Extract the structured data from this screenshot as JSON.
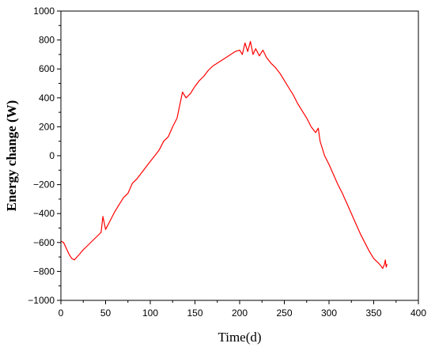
{
  "chart_data": {
    "type": "line",
    "title": "",
    "xlabel": "Time(d)",
    "ylabel": "Energy change (W)",
    "xlim": [
      0,
      400
    ],
    "ylim": [
      -1000,
      1000
    ],
    "x_ticks": [
      0,
      50,
      100,
      150,
      200,
      250,
      300,
      350,
      400
    ],
    "y_ticks": [
      -1000,
      -800,
      -600,
      -400,
      -200,
      0,
      200,
      400,
      600,
      800,
      1000
    ],
    "y_tick_labels": [
      "−1000",
      "−800",
      "−600",
      "−400",
      "−200",
      "0",
      "200",
      "400",
      "600",
      "800",
      "1000"
    ],
    "grid": false,
    "legend": "none",
    "series": [
      {
        "color": "#ff0000",
        "x": [
          0,
          3,
          6,
          9,
          12,
          15,
          18,
          21,
          25,
          30,
          35,
          40,
          45,
          47,
          50,
          55,
          60,
          65,
          70,
          75,
          80,
          85,
          90,
          95,
          100,
          105,
          110,
          115,
          120,
          125,
          130,
          133,
          136,
          140,
          145,
          150,
          155,
          160,
          165,
          170,
          175,
          180,
          185,
          190,
          195,
          200,
          203,
          206,
          209,
          212,
          215,
          218,
          222,
          226,
          230,
          235,
          240,
          245,
          250,
          255,
          260,
          265,
          270,
          275,
          280,
          285,
          288,
          290,
          292,
          295,
          300,
          305,
          310,
          315,
          320,
          325,
          330,
          335,
          340,
          345,
          350,
          355,
          358,
          360,
          362,
          363,
          364,
          365
        ],
        "y": [
          -590,
          -600,
          -640,
          -680,
          -710,
          -720,
          -700,
          -680,
          -650,
          -620,
          -590,
          -560,
          -530,
          -420,
          -510,
          -450,
          -390,
          -340,
          -290,
          -260,
          -190,
          -160,
          -120,
          -80,
          -40,
          0,
          40,
          100,
          130,
          200,
          260,
          350,
          440,
          400,
          430,
          480,
          520,
          550,
          590,
          620,
          640,
          660,
          680,
          700,
          720,
          730,
          700,
          780,
          720,
          790,
          700,
          740,
          690,
          730,
          680,
          640,
          610,
          570,
          520,
          470,
          420,
          360,
          310,
          260,
          200,
          160,
          190,
          100,
          60,
          0,
          -60,
          -130,
          -200,
          -260,
          -330,
          -400,
          -470,
          -540,
          -600,
          -660,
          -710,
          -740,
          -760,
          -780,
          -750,
          -720,
          -770,
          -750
        ]
      }
    ]
  }
}
